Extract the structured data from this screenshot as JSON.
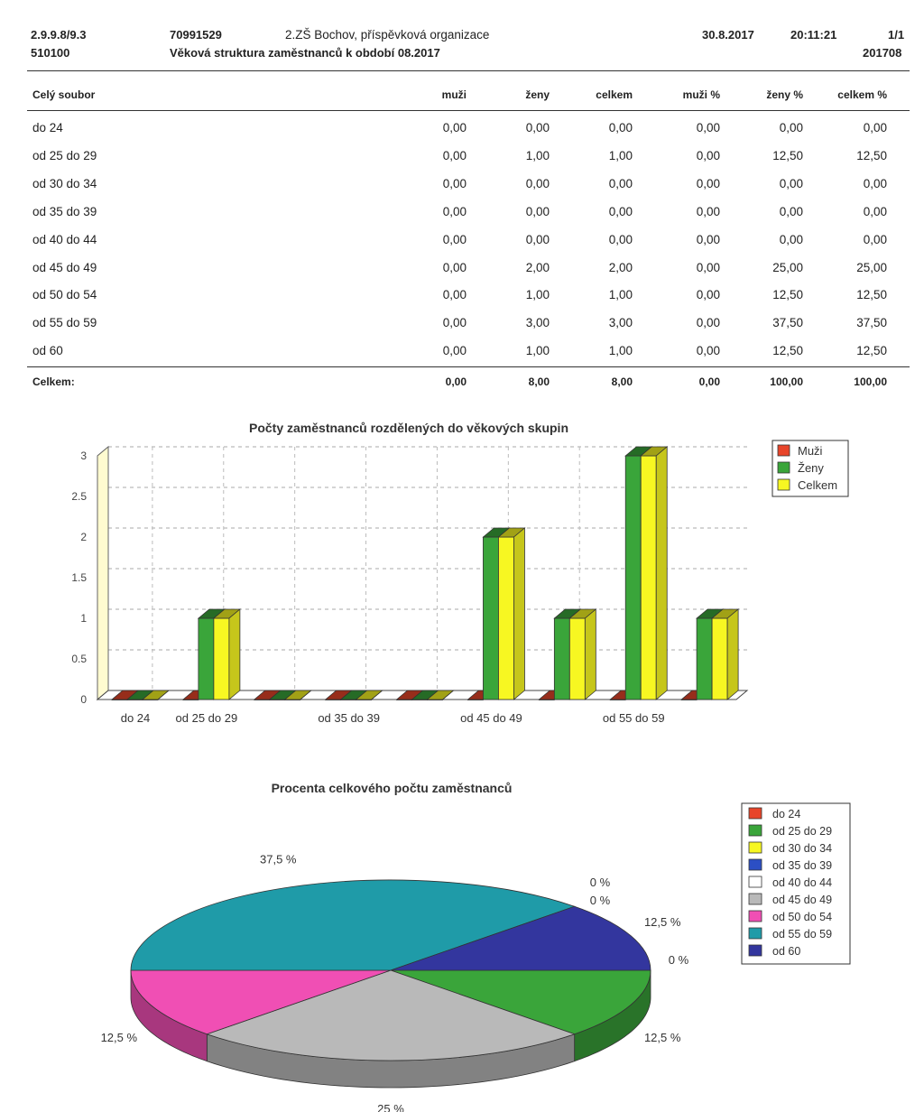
{
  "header": {
    "code": "2.9.9.8/9.3",
    "org_id": "70991529",
    "org_name": "2.ZŠ Bochov, příspěvková organizace",
    "date": "30.8.2017",
    "time": "20:11:21",
    "page": "1/1",
    "code2": "510100",
    "subtitle": "Věková struktura zaměstnanců k období 08.2017",
    "period": "201708"
  },
  "table": {
    "columns": [
      "Celý soubor",
      "muži",
      "ženy",
      "celkem",
      "muži %",
      "ženy %",
      "celkem %"
    ],
    "rows": [
      [
        "do 24",
        "0,00",
        "0,00",
        "0,00",
        "0,00",
        "0,00",
        "0,00"
      ],
      [
        "od 25 do 29",
        "0,00",
        "1,00",
        "1,00",
        "0,00",
        "12,50",
        "12,50"
      ],
      [
        "od 30 do 34",
        "0,00",
        "0,00",
        "0,00",
        "0,00",
        "0,00",
        "0,00"
      ],
      [
        "od 35 do 39",
        "0,00",
        "0,00",
        "0,00",
        "0,00",
        "0,00",
        "0,00"
      ],
      [
        "od 40 do 44",
        "0,00",
        "0,00",
        "0,00",
        "0,00",
        "0,00",
        "0,00"
      ],
      [
        "od 45 do 49",
        "0,00",
        "2,00",
        "2,00",
        "0,00",
        "25,00",
        "25,00"
      ],
      [
        "od 50 do 54",
        "0,00",
        "1,00",
        "1,00",
        "0,00",
        "12,50",
        "12,50"
      ],
      [
        "od 55 do 59",
        "0,00",
        "3,00",
        "3,00",
        "0,00",
        "37,50",
        "37,50"
      ],
      [
        "od 60",
        "0,00",
        "1,00",
        "1,00",
        "0,00",
        "12,50",
        "12,50"
      ]
    ],
    "total": [
      "Celkem:",
      "0,00",
      "8,00",
      "8,00",
      "0,00",
      "100,00",
      "100,00"
    ]
  },
  "chart_data": [
    {
      "type": "bar",
      "title": "Počty zaměstnanců rozdělených do věkových skupin",
      "categories": [
        "do 24",
        "od 25 do 29",
        "od 30 do 34",
        "od 35 do 39",
        "od 40 do 44",
        "od 45 do 49",
        "od 50 do 54",
        "od 55 do 59",
        "od 60"
      ],
      "category_labels_shown": [
        "do 24",
        "od 25 do 29",
        "",
        "od 35 do 39",
        "",
        "od 45 do 49",
        "",
        "od 55 do 59",
        ""
      ],
      "series": [
        {
          "name": "Muži",
          "values": [
            0,
            0,
            0,
            0,
            0,
            0,
            0,
            0,
            0
          ],
          "color": "#e8452a"
        },
        {
          "name": "Ženy",
          "values": [
            0,
            1,
            0,
            0,
            0,
            2,
            1,
            3,
            1
          ],
          "color": "#3aa53a"
        },
        {
          "name": "Celkem",
          "values": [
            0,
            1,
            0,
            0,
            0,
            2,
            1,
            3,
            1
          ],
          "color": "#f7f722"
        }
      ],
      "ylim": [
        0,
        3
      ],
      "yticks": [
        "0",
        "0.5",
        "1",
        "1.5",
        "2",
        "2.5",
        "3"
      ],
      "grid": true,
      "legend": "top-right"
    },
    {
      "type": "pie",
      "title": "Procenta celkového počtu zaměstnanců",
      "slices": [
        {
          "label": "do 24",
          "value": 0,
          "pct_label": "0 %",
          "color": "#e8452a"
        },
        {
          "label": "od 25 do 29",
          "value": 12.5,
          "pct_label": "12,5 %",
          "color": "#3aa53a"
        },
        {
          "label": "od 30 do 34",
          "value": 0,
          "pct_label": "0 %",
          "color": "#f7f722"
        },
        {
          "label": "od 35 do 39",
          "value": 0,
          "pct_label": "0 %",
          "color": "#2c4fc4"
        },
        {
          "label": "od 40 do 44",
          "value": 0,
          "pct_label": "0 %",
          "color": "#ffffff"
        },
        {
          "label": "od 45 do 49",
          "value": 25,
          "pct_label": "25 %",
          "color": "#b9b9b9"
        },
        {
          "label": "od 50 do 54",
          "value": 12.5,
          "pct_label": "12,5 %",
          "color": "#f04fb4"
        },
        {
          "label": "od 55 do 59",
          "value": 37.5,
          "pct_label": "37,5 %",
          "color": "#1f9ba8"
        },
        {
          "label": "od 60",
          "value": 12.5,
          "pct_label": "12,5 %",
          "color": "#33369e"
        }
      ],
      "legend": "right"
    }
  ]
}
